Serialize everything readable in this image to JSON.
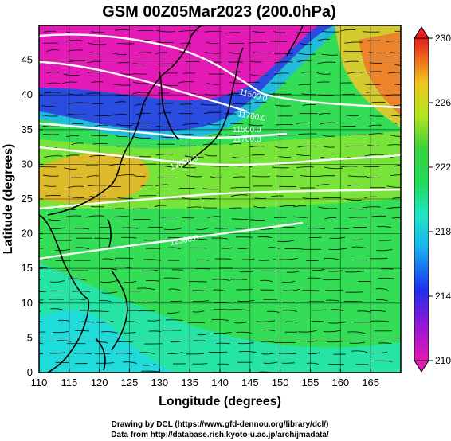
{
  "chart_data": {
    "type": "heatmap",
    "title": "GSM 00Z05Mar2023 (200.0hPa)",
    "xlabel": "Longitude (degrees)",
    "ylabel": "Latitude (degrees)",
    "xlim": [
      110,
      170
    ],
    "ylim": [
      0,
      50
    ],
    "x_ticks": [
      "110",
      "115",
      "120",
      "125",
      "130",
      "135",
      "140",
      "145",
      "150",
      "155",
      "160",
      "165"
    ],
    "y_ticks": [
      "0",
      "5",
      "10",
      "15",
      "20",
      "25",
      "30",
      "35",
      "40",
      "45"
    ],
    "grid": true,
    "colorbar": {
      "range": [
        210,
        230
      ],
      "labels": [
        "230",
        "226",
        "222",
        "218",
        "214",
        "210"
      ],
      "placement": "right",
      "extend": "both"
    },
    "contour_labels": [
      "11500.0",
      "11700.0",
      "11500.0",
      "11700.0",
      "12000.0",
      "12300.0"
    ],
    "credits": [
      "Drawing by DCL (https://www.gfd-dennou.org/library/dcl/)",
      "Data from http://database.rish.kyoto-u.ac.jp/arch/jmadata/"
    ]
  }
}
